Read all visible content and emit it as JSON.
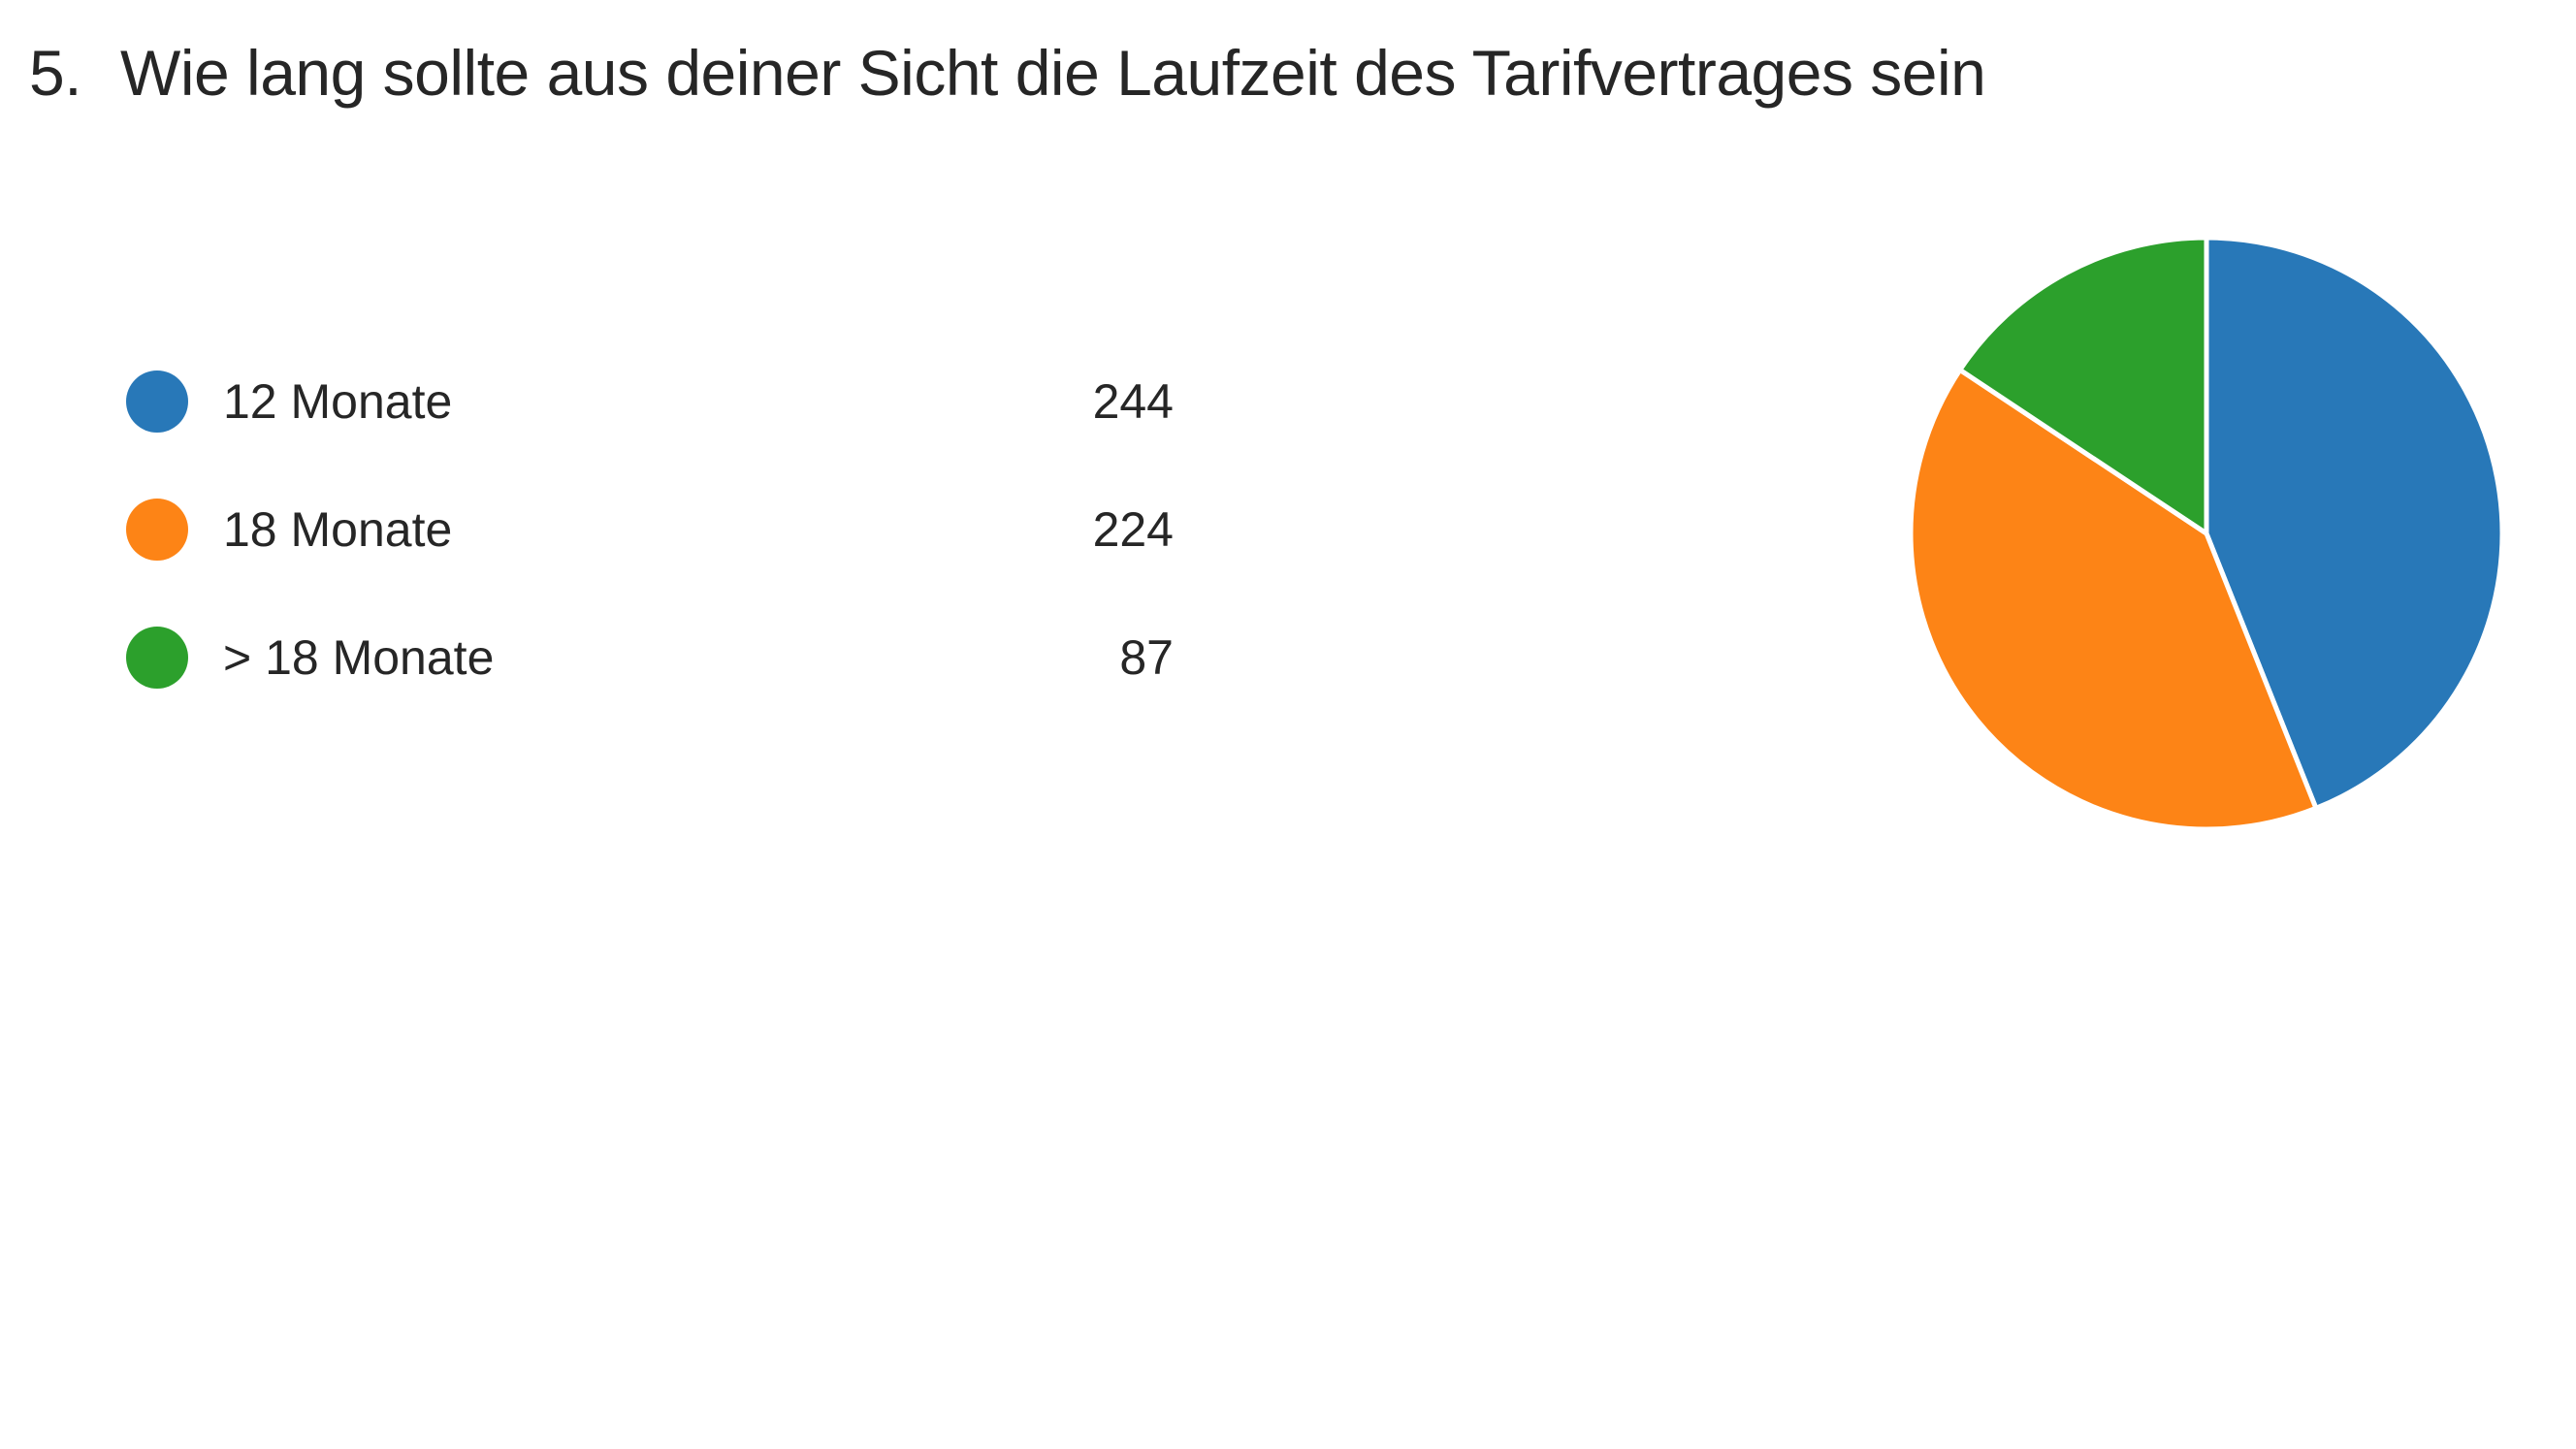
{
  "question": {
    "number": "5.",
    "text": "Wie lang sollte aus deiner Sicht die Laufzeit des Tarifvertrages sein"
  },
  "chart_data": {
    "type": "pie",
    "categories": [
      "12 Monate",
      "18 Monate",
      "> 18 Monate"
    ],
    "values": [
      244,
      224,
      87
    ],
    "colors": [
      "#2878b8",
      "#fd8416",
      "#2ca02c"
    ],
    "start_angle_deg": 0,
    "direction": "clockwise",
    "legend_position": "left"
  }
}
